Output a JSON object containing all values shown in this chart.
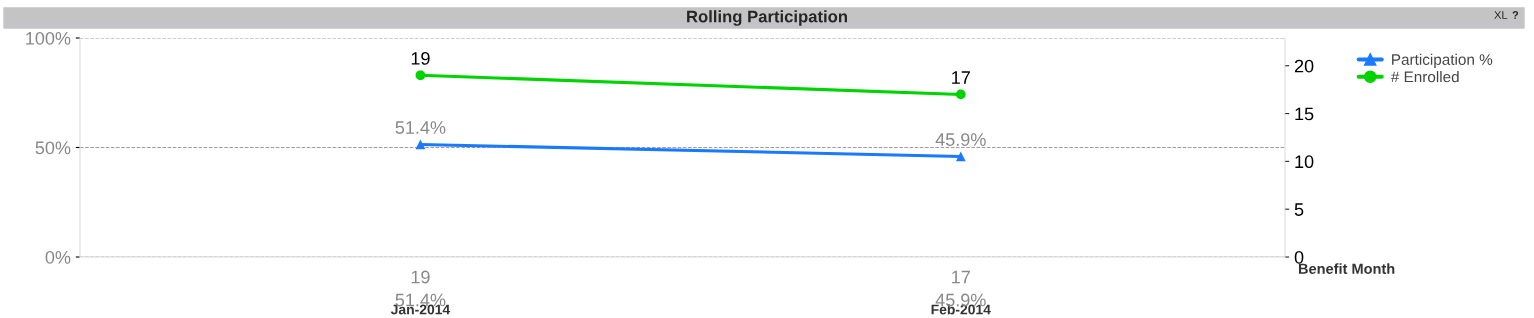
{
  "chart_data": {
    "type": "line",
    "title": "Rolling Participation",
    "xlabel": "Benefit Month",
    "categories": [
      "Jan-2014",
      "Feb-2014"
    ],
    "series": [
      {
        "name": "Participation %",
        "color": "#1a7aff",
        "values": [
          51.4,
          45.9
        ],
        "value_labels": [
          "51.4%",
          "45.9%"
        ],
        "marker": "triangle"
      },
      {
        "name": "# Enrolled",
        "color": "#00d400",
        "values": [
          19,
          17
        ],
        "value_labels": [
          "19",
          "17"
        ],
        "marker": "circle",
        "axis": "y2"
      }
    ],
    "ylim": [
      0,
      100
    ],
    "yticks": [
      {
        "value": 0,
        "label": "0%"
      },
      {
        "value": 50,
        "label": "50%"
      },
      {
        "value": 100,
        "label": "100%"
      }
    ],
    "y2lim": [
      0,
      22.9
    ],
    "y2ticks": [
      0,
      5,
      10,
      15,
      20
    ],
    "grid": "y",
    "legend": "top right",
    "line_style": "solid",
    "annotations": [
      "XL",
      "?"
    ]
  }
}
